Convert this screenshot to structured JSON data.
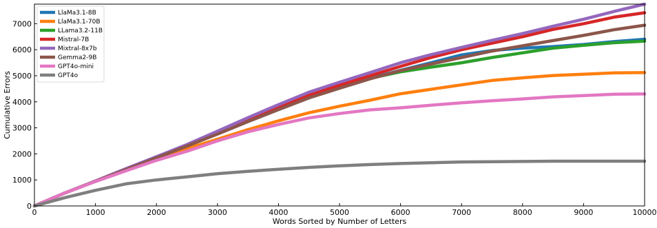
{
  "chart_data": {
    "type": "line",
    "xlabel": "Words Sorted by Number of Letters",
    "ylabel": "Cumulative Errors",
    "xlim": [
      0,
      10000
    ],
    "ylim": [
      0,
      7750
    ],
    "xticks": [
      0,
      1000,
      2000,
      3000,
      4000,
      5000,
      6000,
      7000,
      8000,
      9000,
      10000
    ],
    "yticks": [
      0,
      1000,
      2000,
      3000,
      4000,
      5000,
      6000,
      7000
    ],
    "grid": false,
    "legend_position": "top-left",
    "x": [
      0,
      500,
      1000,
      1500,
      2000,
      2500,
      3000,
      3500,
      4000,
      4500,
      5000,
      5500,
      6000,
      6500,
      7000,
      7500,
      8000,
      8500,
      9000,
      9500,
      10000
    ],
    "series": [
      {
        "name": "LlaMa3.1-8B",
        "color": "#1f77b4",
        "values": [
          0,
          500,
          950,
          1400,
          1850,
          2300,
          2780,
          3270,
          3740,
          4190,
          4560,
          4900,
          5210,
          5500,
          5800,
          5970,
          6060,
          6120,
          6200,
          6310,
          6400
        ]
      },
      {
        "name": "LlaMa3.1-70B",
        "color": "#ff7f0e",
        "values": [
          0,
          500,
          950,
          1380,
          1800,
          2200,
          2560,
          2930,
          3270,
          3580,
          3830,
          4060,
          4310,
          4480,
          4650,
          4820,
          4920,
          5010,
          5060,
          5110,
          5120
        ]
      },
      {
        "name": "LLama3.2-11B",
        "color": "#2ca02c",
        "values": [
          0,
          500,
          950,
          1400,
          1850,
          2300,
          2780,
          3270,
          3740,
          4190,
          4560,
          4900,
          5150,
          5330,
          5500,
          5700,
          5880,
          6060,
          6170,
          6270,
          6330
        ]
      },
      {
        "name": "Mistral-7B",
        "color": "#d62728",
        "values": [
          0,
          500,
          950,
          1400,
          1850,
          2300,
          2800,
          3300,
          3780,
          4250,
          4640,
          5000,
          5360,
          5700,
          6000,
          6250,
          6500,
          6780,
          7000,
          7250,
          7420
        ]
      },
      {
        "name": "Mixtral-8x7b",
        "color": "#9467bd",
        "values": [
          0,
          500,
          960,
          1430,
          1890,
          2360,
          2870,
          3390,
          3890,
          4370,
          4750,
          5120,
          5500,
          5810,
          6090,
          6360,
          6620,
          6900,
          7170,
          7470,
          7750
        ]
      },
      {
        "name": "Gemma2-9B",
        "color": "#8c564b",
        "values": [
          0,
          500,
          950,
          1400,
          1850,
          2300,
          2760,
          3240,
          3700,
          4150,
          4520,
          4880,
          5200,
          5450,
          5700,
          5950,
          6150,
          6350,
          6550,
          6770,
          6940
        ]
      },
      {
        "name": "GPT4o-mini",
        "color": "#e377c2",
        "values": [
          0,
          500,
          940,
          1350,
          1750,
          2100,
          2500,
          2850,
          3130,
          3380,
          3550,
          3690,
          3770,
          3870,
          3960,
          4040,
          4110,
          4190,
          4240,
          4290,
          4300
        ]
      },
      {
        "name": "GPT4o",
        "color": "#7f7f7f",
        "values": [
          0,
          320,
          600,
          850,
          1000,
          1120,
          1240,
          1330,
          1410,
          1480,
          1540,
          1590,
          1630,
          1660,
          1690,
          1700,
          1710,
          1720,
          1720,
          1720,
          1720
        ]
      }
    ]
  }
}
